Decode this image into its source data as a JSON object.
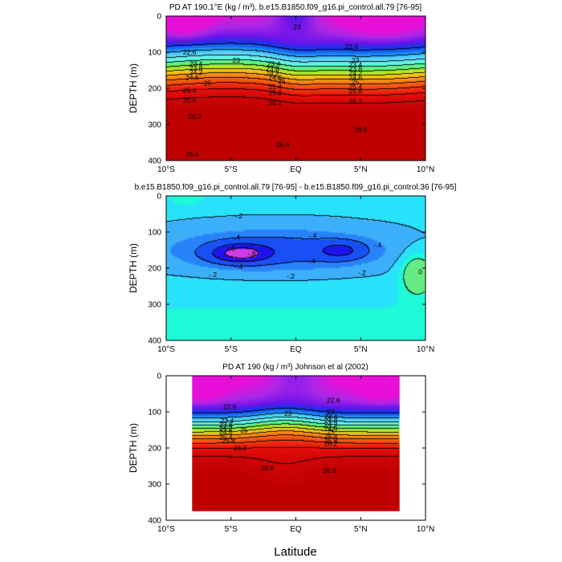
{
  "chart_data": [
    {
      "type": "heatmap",
      "title": "PD AT 190.1°E (kg / m³), b.e15.B1850.f09_g16.pi_control.all.79 [76-95]",
      "xlabel": "",
      "ylabel": "DEPTH (m)",
      "xlim": [
        -10,
        10
      ],
      "ylim": [
        400,
        0
      ],
      "x_tick_labels": [
        "10°S",
        "5°S",
        "EQ",
        "5°N",
        "10°N"
      ],
      "y_tick_labels": [
        "0",
        "100",
        "200",
        "300",
        "400"
      ],
      "contour_levels": [
        22.6,
        23,
        23.4,
        23.8,
        24.2,
        24.6,
        25,
        25.4,
        25.8,
        26.2,
        26.6
      ],
      "contour_labels": [
        {
          "text": "22.6",
          "x": -8.2,
          "y": 100
        },
        {
          "text": "23",
          "x": -4.6,
          "y": 122
        },
        {
          "text": "23",
          "x": 0.1,
          "y": 30
        },
        {
          "text": "22.6",
          "x": 4.3,
          "y": 84
        },
        {
          "text": "23",
          "x": 4.6,
          "y": 122
        },
        {
          "text": "23.4",
          "x": -7.7,
          "y": 132
        },
        {
          "text": "23.8",
          "x": -7.7,
          "y": 144
        },
        {
          "text": "24.2",
          "x": -7.7,
          "y": 156
        },
        {
          "text": "24.6",
          "x": -8.0,
          "y": 170
        },
        {
          "text": "25",
          "x": -6.8,
          "y": 186
        },
        {
          "text": "25.4",
          "x": -8.2,
          "y": 206
        },
        {
          "text": "25.8",
          "x": -8.2,
          "y": 232
        },
        {
          "text": "26.2",
          "x": -7.8,
          "y": 278
        },
        {
          "text": "26.6",
          "x": -8.0,
          "y": 382
        },
        {
          "text": "23.4",
          "x": -1.7,
          "y": 132
        },
        {
          "text": "23.8",
          "x": -1.8,
          "y": 146
        },
        {
          "text": "24.2",
          "x": -1.8,
          "y": 158
        },
        {
          "text": "24.6",
          "x": -1.6,
          "y": 170
        },
        {
          "text": "25",
          "x": -1.1,
          "y": 180
        },
        {
          "text": "25.4",
          "x": -1.6,
          "y": 196
        },
        {
          "text": "25.8",
          "x": -1.6,
          "y": 212
        },
        {
          "text": "26.2",
          "x": -1.6,
          "y": 240
        },
        {
          "text": "26.6",
          "x": -1.0,
          "y": 356
        },
        {
          "text": "23.4",
          "x": 4.6,
          "y": 134
        },
        {
          "text": "23.8",
          "x": 4.6,
          "y": 146
        },
        {
          "text": "24.2",
          "x": 4.6,
          "y": 158
        },
        {
          "text": "24.6",
          "x": 4.6,
          "y": 170
        },
        {
          "text": "25",
          "x": 4.6,
          "y": 182
        },
        {
          "text": "25.4",
          "x": 4.6,
          "y": 196
        },
        {
          "text": "25.8",
          "x": 4.6,
          "y": 208
        },
        {
          "text": "26.2",
          "x": 4.6,
          "y": 236
        },
        {
          "text": "26.6",
          "x": 5.0,
          "y": 314
        }
      ]
    },
    {
      "type": "heatmap",
      "title": "b.e15.B1850.f09_g16.pi_control.all.79 [76-95] - b.e15.B1850.f09_g16.pi_control.36 [76-95]",
      "xlabel": "",
      "ylabel": "DEPTH (m)",
      "xlim": [
        -10,
        10
      ],
      "ylim": [
        400,
        0
      ],
      "x_tick_labels": [
        "10°S",
        "5°S",
        "EQ",
        "5°N",
        "10°N"
      ],
      "y_tick_labels": [
        "0",
        "100",
        "200",
        "300",
        "400"
      ],
      "contour_levels": [
        -0.8,
        -0.6,
        -0.4,
        -0.2,
        0
      ],
      "contour_labels": [
        {
          "text": "-.2",
          "x": -4.4,
          "y": 56
        },
        {
          "text": "-.4",
          "x": -4.6,
          "y": 114
        },
        {
          "text": "-.4",
          "x": 1.3,
          "y": 110
        },
        {
          "text": "-.4",
          "x": 6.3,
          "y": 136
        },
        {
          "text": "-.6",
          "x": -5.0,
          "y": 146
        },
        {
          "text": "-.8",
          "x": -3.4,
          "y": 160
        },
        {
          "text": "-.4",
          "x": -4.4,
          "y": 196
        },
        {
          "text": "-.4",
          "x": 1.2,
          "y": 180
        },
        {
          "text": "-.2",
          "x": -6.4,
          "y": 218
        },
        {
          "text": "-.2",
          "x": -0.4,
          "y": 222
        },
        {
          "text": "-.2",
          "x": 5.1,
          "y": 212
        },
        {
          "text": "0",
          "x": 9.6,
          "y": 210
        }
      ]
    },
    {
      "type": "heatmap",
      "title": "PD AT 190 (kg / m³) Johnson et al (2002)",
      "xlabel": "Latitude",
      "ylabel": "DEPTH (m)",
      "xlim": [
        -10,
        10
      ],
      "ylim": [
        400,
        0
      ],
      "data_xlim": [
        -8,
        8
      ],
      "data_ylim": [
        0,
        375
      ],
      "x_tick_labels": [
        "10°S",
        "5°S",
        "EQ",
        "5°N",
        "10°N"
      ],
      "y_tick_labels": [
        "0",
        "100",
        "200",
        "300",
        "400"
      ],
      "contour_levels": [
        22.6,
        23,
        23.4,
        23.8,
        24.2,
        24.6,
        25,
        25.4,
        25.8,
        26.2,
        26.6
      ],
      "contour_labels": [
        {
          "text": "22.6",
          "x": -5.1,
          "y": 86
        },
        {
          "text": "23",
          "x": -0.6,
          "y": 104
        },
        {
          "text": "22.6",
          "x": 2.9,
          "y": 68
        },
        {
          "text": "23.4",
          "x": -5.3,
          "y": 124
        },
        {
          "text": "23.8",
          "x": -5.4,
          "y": 136
        },
        {
          "text": "24.2",
          "x": -5.4,
          "y": 146
        },
        {
          "text": "24.6",
          "x": -5.4,
          "y": 156
        },
        {
          "text": "25",
          "x": -4.0,
          "y": 150
        },
        {
          "text": "25.4",
          "x": -5.4,
          "y": 170
        },
        {
          "text": "25.8",
          "x": -5.2,
          "y": 180
        },
        {
          "text": "26.2",
          "x": -4.3,
          "y": 200
        },
        {
          "text": "26.6",
          "x": -2.2,
          "y": 256
        },
        {
          "text": "23",
          "x": 2.7,
          "y": 100
        },
        {
          "text": "23.4",
          "x": 2.7,
          "y": 112
        },
        {
          "text": "23.8",
          "x": 2.7,
          "y": 122
        },
        {
          "text": "24.2",
          "x": 2.7,
          "y": 134
        },
        {
          "text": "24.6",
          "x": 2.7,
          "y": 146
        },
        {
          "text": "25",
          "x": 2.7,
          "y": 156
        },
        {
          "text": "25.4",
          "x": 2.7,
          "y": 168
        },
        {
          "text": "25.8",
          "x": 2.7,
          "y": 180
        },
        {
          "text": "26.2",
          "x": 2.7,
          "y": 188
        },
        {
          "text": "26.6",
          "x": 2.6,
          "y": 262
        }
      ]
    }
  ]
}
